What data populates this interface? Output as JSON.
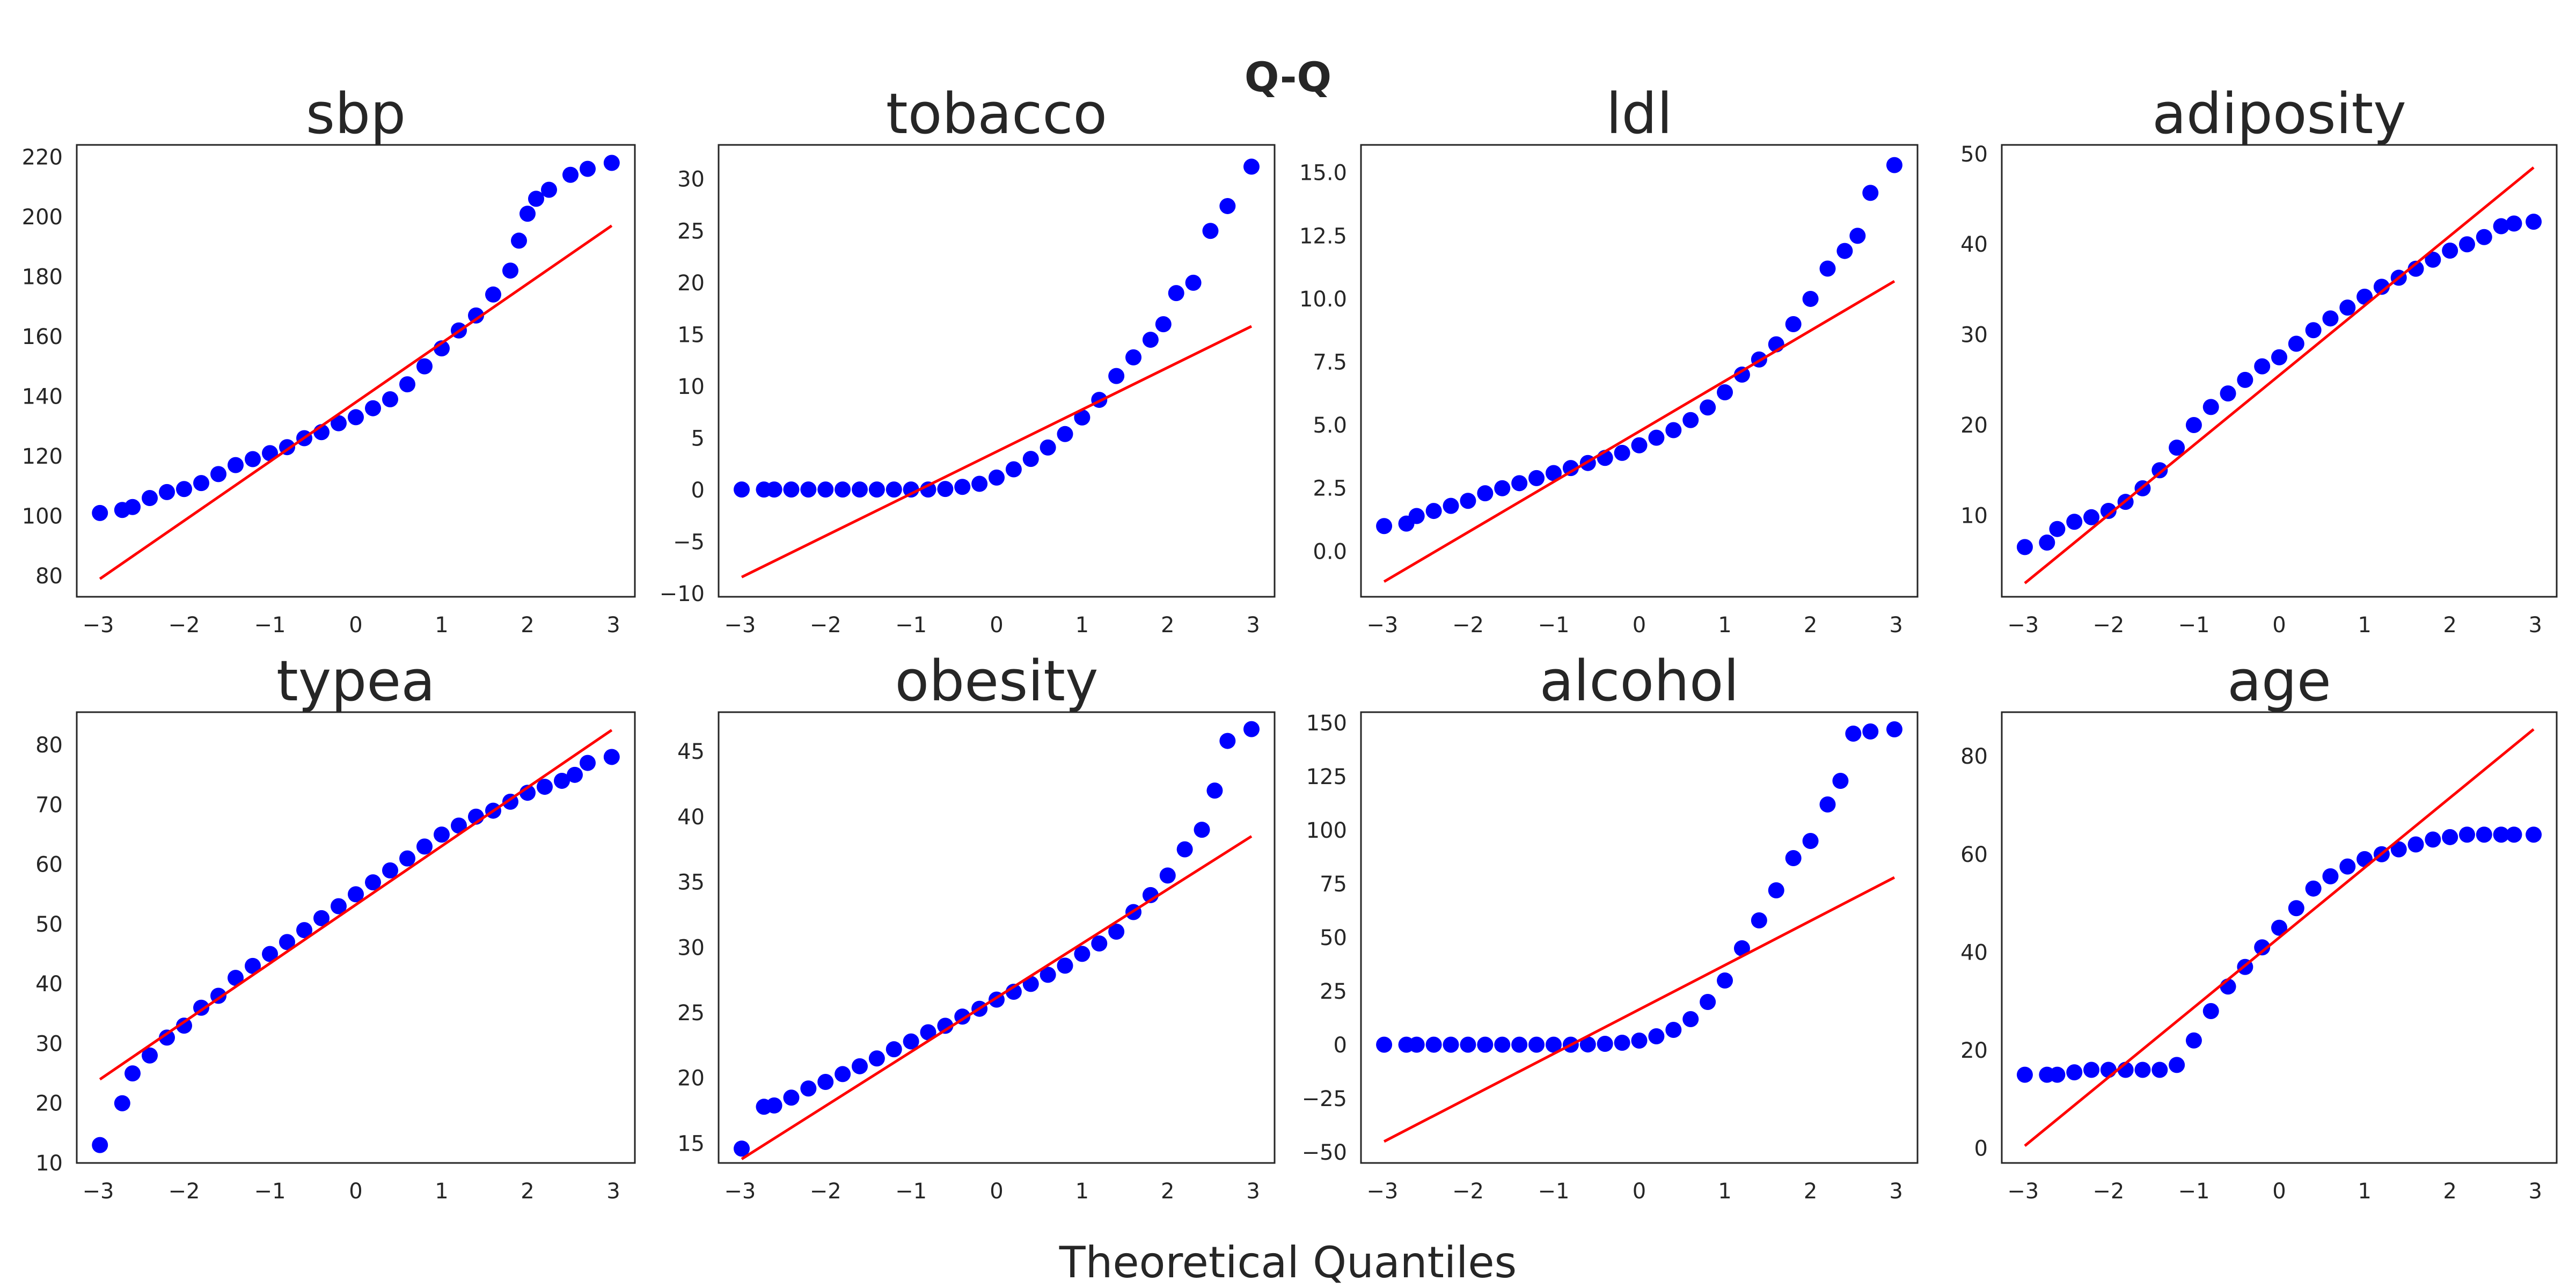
{
  "figure": {
    "title": "Q-Q",
    "xlabel": "Theoretical Quantiles"
  },
  "colors": {
    "points": "#0000ff",
    "fit_line": "#ff0000",
    "axes": "#262626"
  },
  "chart_data": [
    {
      "type": "scatter",
      "title": "sbp",
      "xlim": [
        -3.25,
        3.25
      ],
      "ylim": [
        73,
        224
      ],
      "xticks": [
        -3,
        -2,
        -1,
        0,
        1,
        2,
        3
      ],
      "yticks": [
        80,
        100,
        120,
        140,
        160,
        180,
        200,
        220
      ],
      "fit_line": {
        "x": [
          -2.98,
          2.98
        ],
        "y": [
          79,
          197
        ]
      },
      "points": [
        [
          -2.98,
          101
        ],
        [
          -2.72,
          102
        ],
        [
          -2.6,
          103
        ],
        [
          -2.4,
          106
        ],
        [
          -2.2,
          108
        ],
        [
          -2.0,
          109
        ],
        [
          -1.8,
          111
        ],
        [
          -1.6,
          114
        ],
        [
          -1.4,
          117
        ],
        [
          -1.2,
          119
        ],
        [
          -1.0,
          121
        ],
        [
          -0.8,
          123
        ],
        [
          -0.6,
          126
        ],
        [
          -0.4,
          128
        ],
        [
          -0.2,
          131
        ],
        [
          0.0,
          133
        ],
        [
          0.2,
          136
        ],
        [
          0.4,
          139
        ],
        [
          0.6,
          144
        ],
        [
          0.8,
          150
        ],
        [
          1.0,
          156
        ],
        [
          1.2,
          162
        ],
        [
          1.4,
          167
        ],
        [
          1.6,
          174
        ],
        [
          1.8,
          182
        ],
        [
          1.9,
          192
        ],
        [
          2.0,
          201
        ],
        [
          2.1,
          206
        ],
        [
          2.25,
          209
        ],
        [
          2.5,
          214
        ],
        [
          2.7,
          216
        ],
        [
          2.98,
          218
        ]
      ]
    },
    {
      "type": "scatter",
      "title": "tobacco",
      "xlim": [
        -3.25,
        3.25
      ],
      "ylim": [
        -10.3,
        33.3
      ],
      "xticks": [
        -3,
        -2,
        -1,
        0,
        1,
        2,
        3
      ],
      "yticks": [
        -10,
        -5,
        0,
        5,
        10,
        15,
        20,
        25,
        30
      ],
      "fit_line": {
        "x": [
          -2.98,
          2.98
        ],
        "y": [
          -8.4,
          15.8
        ]
      },
      "points": [
        [
          -2.98,
          0.05
        ],
        [
          -2.72,
          0.05
        ],
        [
          -2.6,
          0.05
        ],
        [
          -2.4,
          0.05
        ],
        [
          -2.2,
          0.05
        ],
        [
          -2.0,
          0.05
        ],
        [
          -1.8,
          0.05
        ],
        [
          -1.6,
          0.05
        ],
        [
          -1.4,
          0.05
        ],
        [
          -1.2,
          0.05
        ],
        [
          -1.0,
          0.05
        ],
        [
          -0.8,
          0.05
        ],
        [
          -0.6,
          0.1
        ],
        [
          -0.4,
          0.3
        ],
        [
          -0.2,
          0.6
        ],
        [
          0.0,
          1.2
        ],
        [
          0.2,
          2.0
        ],
        [
          0.4,
          3.0
        ],
        [
          0.6,
          4.1
        ],
        [
          0.8,
          5.4
        ],
        [
          1.0,
          7.0
        ],
        [
          1.2,
          8.7
        ],
        [
          1.4,
          11.0
        ],
        [
          1.6,
          12.8
        ],
        [
          1.8,
          14.5
        ],
        [
          1.95,
          16.0
        ],
        [
          2.1,
          19.0
        ],
        [
          2.3,
          20.0
        ],
        [
          2.5,
          25.0
        ],
        [
          2.7,
          27.4
        ],
        [
          2.98,
          31.2
        ]
      ]
    },
    {
      "type": "scatter",
      "title": "ldl",
      "xlim": [
        -3.25,
        3.25
      ],
      "ylim": [
        -1.8,
        16.1
      ],
      "xticks": [
        -3,
        -2,
        -1,
        0,
        1,
        2,
        3
      ],
      "yticks": [
        0,
        2.5,
        5,
        7.5,
        10,
        12.5,
        15
      ],
      "ytick_labels": [
        "0.0",
        "2.5",
        "5.0",
        "7.5",
        "10.0",
        "12.5",
        "15.0"
      ],
      "fit_line": {
        "x": [
          -2.98,
          2.98
        ],
        "y": [
          -1.2,
          10.7
        ]
      },
      "points": [
        [
          -2.98,
          1.0
        ],
        [
          -2.72,
          1.1
        ],
        [
          -2.6,
          1.4
        ],
        [
          -2.4,
          1.6
        ],
        [
          -2.2,
          1.8
        ],
        [
          -2.0,
          2.0
        ],
        [
          -1.8,
          2.3
        ],
        [
          -1.6,
          2.5
        ],
        [
          -1.4,
          2.7
        ],
        [
          -1.2,
          2.9
        ],
        [
          -1.0,
          3.1
        ],
        [
          -0.8,
          3.3
        ],
        [
          -0.6,
          3.5
        ],
        [
          -0.4,
          3.7
        ],
        [
          -0.2,
          3.9
        ],
        [
          0.0,
          4.2
        ],
        [
          0.2,
          4.5
        ],
        [
          0.4,
          4.8
        ],
        [
          0.6,
          5.2
        ],
        [
          0.8,
          5.7
        ],
        [
          1.0,
          6.3
        ],
        [
          1.2,
          7.0
        ],
        [
          1.4,
          7.6
        ],
        [
          1.6,
          8.2
        ],
        [
          1.8,
          9.0
        ],
        [
          2.0,
          10.0
        ],
        [
          2.2,
          11.2
        ],
        [
          2.4,
          11.9
        ],
        [
          2.55,
          12.5
        ],
        [
          2.7,
          14.2
        ],
        [
          2.98,
          15.3
        ]
      ]
    },
    {
      "type": "scatter",
      "title": "adiposity",
      "xlim": [
        -3.25,
        3.25
      ],
      "ylim": [
        1,
        51
      ],
      "xticks": [
        -3,
        -2,
        -1,
        0,
        1,
        2,
        3
      ],
      "yticks": [
        10,
        20,
        30,
        40,
        50
      ],
      "fit_line": {
        "x": [
          -2.98,
          2.98
        ],
        "y": [
          2.5,
          48.5
        ]
      },
      "points": [
        [
          -2.98,
          6.5
        ],
        [
          -2.72,
          7.0
        ],
        [
          -2.6,
          8.5
        ],
        [
          -2.4,
          9.3
        ],
        [
          -2.2,
          9.8
        ],
        [
          -2.0,
          10.5
        ],
        [
          -1.8,
          11.5
        ],
        [
          -1.6,
          13.0
        ],
        [
          -1.4,
          15.0
        ],
        [
          -1.2,
          17.5
        ],
        [
          -1.0,
          20.0
        ],
        [
          -0.8,
          22.0
        ],
        [
          -0.6,
          23.5
        ],
        [
          -0.4,
          25.0
        ],
        [
          -0.2,
          26.5
        ],
        [
          0.0,
          27.5
        ],
        [
          0.2,
          29.0
        ],
        [
          0.4,
          30.5
        ],
        [
          0.6,
          31.8
        ],
        [
          0.8,
          33.0
        ],
        [
          1.0,
          34.2
        ],
        [
          1.2,
          35.3
        ],
        [
          1.4,
          36.3
        ],
        [
          1.6,
          37.3
        ],
        [
          1.8,
          38.3
        ],
        [
          2.0,
          39.3
        ],
        [
          2.2,
          40.0
        ],
        [
          2.4,
          40.8
        ],
        [
          2.6,
          42.0
        ],
        [
          2.75,
          42.3
        ],
        [
          2.98,
          42.5
        ]
      ]
    },
    {
      "type": "scatter",
      "title": "typea",
      "xlim": [
        -3.25,
        3.25
      ],
      "ylim": [
        10,
        85.5
      ],
      "xticks": [
        -3,
        -2,
        -1,
        0,
        1,
        2,
        3
      ],
      "yticks": [
        10,
        20,
        30,
        40,
        50,
        60,
        70,
        80
      ],
      "fit_line": {
        "x": [
          -2.98,
          2.98
        ],
        "y": [
          24,
          82.5
        ]
      },
      "points": [
        [
          -2.98,
          13.0
        ],
        [
          -2.72,
          20.0
        ],
        [
          -2.6,
          25.0
        ],
        [
          -2.4,
          28.0
        ],
        [
          -2.2,
          31.0
        ],
        [
          -2.0,
          33.0
        ],
        [
          -1.8,
          36.0
        ],
        [
          -1.6,
          38.0
        ],
        [
          -1.4,
          41.0
        ],
        [
          -1.2,
          43.0
        ],
        [
          -1.0,
          45.0
        ],
        [
          -0.8,
          47.0
        ],
        [
          -0.6,
          49.0
        ],
        [
          -0.4,
          51.0
        ],
        [
          -0.2,
          53.0
        ],
        [
          0.0,
          55.0
        ],
        [
          0.2,
          57.0
        ],
        [
          0.4,
          59.0
        ],
        [
          0.6,
          61.0
        ],
        [
          0.8,
          63.0
        ],
        [
          1.0,
          65.0
        ],
        [
          1.2,
          66.5
        ],
        [
          1.4,
          68.0
        ],
        [
          1.6,
          69.0
        ],
        [
          1.8,
          70.5
        ],
        [
          2.0,
          72.0
        ],
        [
          2.2,
          73.0
        ],
        [
          2.4,
          74.0
        ],
        [
          2.55,
          75.0
        ],
        [
          2.7,
          77.0
        ],
        [
          2.98,
          78.0
        ]
      ]
    },
    {
      "type": "scatter",
      "title": "obesity",
      "xlim": [
        -3.25,
        3.25
      ],
      "ylim": [
        13.5,
        48
      ],
      "xticks": [
        -3,
        -2,
        -1,
        0,
        1,
        2,
        3
      ],
      "yticks": [
        15,
        20,
        25,
        30,
        35,
        40,
        45
      ],
      "fit_line": {
        "x": [
          -2.98,
          2.98
        ],
        "y": [
          13.8,
          38.5
        ]
      },
      "points": [
        [
          -2.98,
          14.6
        ],
        [
          -2.72,
          17.8
        ],
        [
          -2.6,
          17.9
        ],
        [
          -2.4,
          18.5
        ],
        [
          -2.2,
          19.2
        ],
        [
          -2.0,
          19.7
        ],
        [
          -1.8,
          20.3
        ],
        [
          -1.6,
          20.9
        ],
        [
          -1.4,
          21.5
        ],
        [
          -1.2,
          22.2
        ],
        [
          -1.0,
          22.8
        ],
        [
          -0.8,
          23.5
        ],
        [
          -0.6,
          24.0
        ],
        [
          -0.4,
          24.7
        ],
        [
          -0.2,
          25.3
        ],
        [
          0.0,
          26.0
        ],
        [
          0.2,
          26.6
        ],
        [
          0.4,
          27.2
        ],
        [
          0.6,
          27.9
        ],
        [
          0.8,
          28.6
        ],
        [
          1.0,
          29.5
        ],
        [
          1.2,
          30.3
        ],
        [
          1.4,
          31.2
        ],
        [
          1.6,
          32.7
        ],
        [
          1.8,
          34.0
        ],
        [
          2.0,
          35.5
        ],
        [
          2.2,
          37.5
        ],
        [
          2.4,
          39.0
        ],
        [
          2.55,
          42.0
        ],
        [
          2.7,
          45.8
        ],
        [
          2.98,
          46.7
        ]
      ]
    },
    {
      "type": "scatter",
      "title": "alcohol",
      "xlim": [
        -3.25,
        3.25
      ],
      "ylim": [
        -55,
        155
      ],
      "xticks": [
        -3,
        -2,
        -1,
        0,
        1,
        2,
        3
      ],
      "yticks": [
        -50,
        -25,
        0,
        25,
        50,
        75,
        100,
        125,
        150
      ],
      "fit_line": {
        "x": [
          -2.98,
          2.98
        ],
        "y": [
          -45,
          78
        ]
      },
      "points": [
        [
          -2.98,
          0.1
        ],
        [
          -2.72,
          0.1
        ],
        [
          -2.6,
          0.1
        ],
        [
          -2.4,
          0.1
        ],
        [
          -2.2,
          0.1
        ],
        [
          -2.0,
          0.1
        ],
        [
          -1.8,
          0.1
        ],
        [
          -1.6,
          0.1
        ],
        [
          -1.4,
          0.1
        ],
        [
          -1.2,
          0.1
        ],
        [
          -1.0,
          0.1
        ],
        [
          -0.8,
          0.1
        ],
        [
          -0.6,
          0.2
        ],
        [
          -0.4,
          0.5
        ],
        [
          -0.2,
          1.0
        ],
        [
          0.0,
          2.0
        ],
        [
          0.2,
          4.0
        ],
        [
          0.4,
          7.0
        ],
        [
          0.6,
          12.0
        ],
        [
          0.8,
          20.0
        ],
        [
          1.0,
          30.0
        ],
        [
          1.2,
          45.0
        ],
        [
          1.4,
          58.0
        ],
        [
          1.6,
          72.0
        ],
        [
          1.8,
          87.0
        ],
        [
          2.0,
          95.0
        ],
        [
          2.2,
          112.0
        ],
        [
          2.35,
          123.0
        ],
        [
          2.5,
          145.0
        ],
        [
          2.7,
          146.0
        ],
        [
          2.98,
          147.0
        ]
      ]
    },
    {
      "type": "scatter",
      "title": "age",
      "xlim": [
        -3.25,
        3.25
      ],
      "ylim": [
        -3,
        89
      ],
      "xticks": [
        -3,
        -2,
        -1,
        0,
        1,
        2,
        3
      ],
      "yticks": [
        0,
        20,
        40,
        60,
        80
      ],
      "fit_line": {
        "x": [
          -2.98,
          2.98
        ],
        "y": [
          0.5,
          85.5
        ]
      },
      "points": [
        [
          -2.98,
          15.0
        ],
        [
          -2.72,
          15.0
        ],
        [
          -2.6,
          15.0
        ],
        [
          -2.4,
          15.5
        ],
        [
          -2.2,
          16.0
        ],
        [
          -2.0,
          16.0
        ],
        [
          -1.8,
          16.0
        ],
        [
          -1.6,
          16.0
        ],
        [
          -1.4,
          16.0
        ],
        [
          -1.2,
          17.0
        ],
        [
          -1.0,
          22.0
        ],
        [
          -0.8,
          28.0
        ],
        [
          -0.6,
          33.0
        ],
        [
          -0.4,
          37.0
        ],
        [
          -0.2,
          41.0
        ],
        [
          0.0,
          45.0
        ],
        [
          0.2,
          49.0
        ],
        [
          0.4,
          53.0
        ],
        [
          0.6,
          55.5
        ],
        [
          0.8,
          57.5
        ],
        [
          1.0,
          59.0
        ],
        [
          1.2,
          60.0
        ],
        [
          1.4,
          61.0
        ],
        [
          1.6,
          62.0
        ],
        [
          1.8,
          63.0
        ],
        [
          2.0,
          63.5
        ],
        [
          2.2,
          64.0
        ],
        [
          2.4,
          64.0
        ],
        [
          2.6,
          64.0
        ],
        [
          2.75,
          64.0
        ],
        [
          2.98,
          64.0
        ]
      ]
    }
  ]
}
